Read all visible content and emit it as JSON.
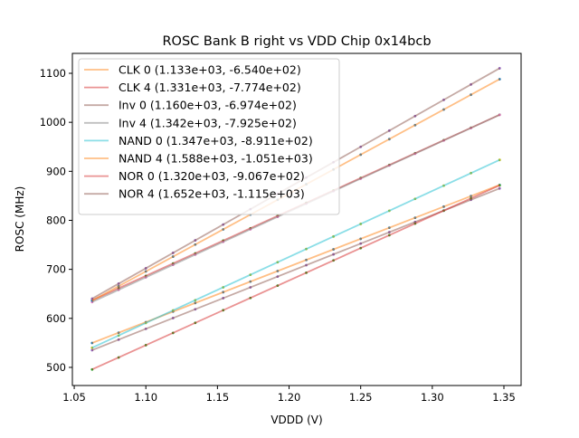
{
  "chart_data": {
    "type": "line",
    "title": "ROSC Bank B right vs VDD Chip 0x14bcb",
    "xlabel": "VDDD (V)",
    "ylabel": "ROSC (MHz)",
    "xlim": [
      1.0487,
      1.362
    ],
    "ylim": [
      463,
      1140.6
    ],
    "xticks": [
      1.05,
      1.1,
      1.15,
      1.2,
      1.25,
      1.3,
      1.35
    ],
    "xtick_labels": [
      "1.05",
      "1.10",
      "1.15",
      "1.20",
      "1.25",
      "1.30",
      "1.35"
    ],
    "yticks": [
      500,
      600,
      700,
      800,
      900,
      1000,
      1100
    ],
    "ytick_labels": [
      "500",
      "600",
      "700",
      "800",
      "900",
      "1000",
      "1100"
    ],
    "grid": false,
    "legend_position": "top-left",
    "x_points": [
      1.0625,
      1.081,
      1.1,
      1.119,
      1.1345,
      1.154,
      1.173,
      1.192,
      1.212,
      1.231,
      1.25,
      1.27,
      1.288,
      1.308,
      1.327,
      1.347
    ],
    "series": [
      {
        "name": "CLK 0 (1.133e+03, -6.540e+02)",
        "slope": 1133,
        "intercept": -654.0,
        "color": "#ff7f0e",
        "point_color": "#1f77b4"
      },
      {
        "name": "CLK 4 (1.331e+03, -7.774e+02)",
        "slope": 1331,
        "intercept": -777.4,
        "color": "#d62728",
        "point_color": "#2ca02c"
      },
      {
        "name": "Inv 0 (1.160e+03, -6.974e+02)",
        "slope": 1160,
        "intercept": -697.4,
        "color": "#8c564b",
        "point_color": "#9467bd"
      },
      {
        "name": "Inv 4 (1.342e+03, -7.925e+02)",
        "slope": 1342,
        "intercept": -792.5,
        "color": "#7f7f7f",
        "point_color": "#e377c2"
      },
      {
        "name": "NAND 0 (1.347e+03, -8.911e+02)",
        "slope": 1347,
        "intercept": -891.1,
        "color": "#17becf",
        "point_color": "#bcbd22"
      },
      {
        "name": "NAND 4 (1.588e+03, -1.051e+03)",
        "slope": 1588,
        "intercept": -1051,
        "color": "#ff7f0e",
        "point_color": "#1f77b4"
      },
      {
        "name": "NOR 0 (1.320e+03, -9.067e+02)",
        "slope": 1320,
        "intercept": -906.7,
        "color": "#d62728",
        "point_color": "#2ca02c"
      },
      {
        "name": "NOR 4 (1.652e+03, -1.115e+03)",
        "slope": 1652,
        "intercept": -1115,
        "color": "#8c564b",
        "point_color": "#9467bd"
      }
    ]
  }
}
